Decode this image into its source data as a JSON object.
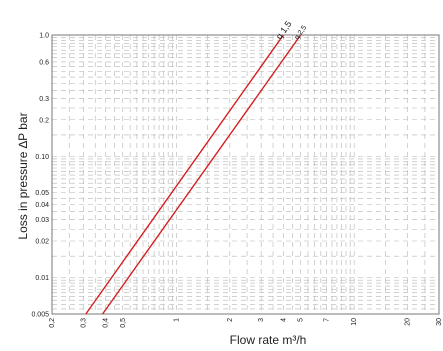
{
  "chart_data": {
    "type": "line",
    "xscale": "log",
    "yscale": "log",
    "xlim": [
      0.2,
      30
    ],
    "ylim": [
      0.005,
      1.0
    ],
    "xticks": [
      {
        "value": 0.2,
        "label": "0,2"
      },
      {
        "value": 0.3,
        "label": "0,3"
      },
      {
        "value": 0.4,
        "label": "0,4"
      },
      {
        "value": 0.5,
        "label": "0,5"
      },
      {
        "value": 1,
        "label": "1"
      },
      {
        "value": 2,
        "label": "2"
      },
      {
        "value": 3,
        "label": "3"
      },
      {
        "value": 4,
        "label": "4"
      },
      {
        "value": 5,
        "label": "5"
      },
      {
        "value": 7,
        "label": "7"
      },
      {
        "value": 10,
        "label": "10"
      },
      {
        "value": 20,
        "label": "20"
      },
      {
        "value": 30,
        "label": "30"
      }
    ],
    "yticks": [
      {
        "value": 0.005,
        "label": "0.005"
      },
      {
        "value": 0.01,
        "label": "0.01"
      },
      {
        "value": 0.02,
        "label": "0.02"
      },
      {
        "value": 0.03,
        "label": "0.03"
      },
      {
        "value": 0.04,
        "label": "0.04"
      },
      {
        "value": 0.05,
        "label": "0.05"
      },
      {
        "value": 0.1,
        "label": "0.10"
      },
      {
        "value": 0.2,
        "label": "0.2"
      },
      {
        "value": 0.3,
        "label": "0.3"
      },
      {
        "value": 0.6,
        "label": "0.6"
      },
      {
        "value": 1.0,
        "label": "1.0"
      }
    ],
    "xlabel": "Flow rate  m³/h",
    "ylabel": "Loss in pressure  ∆P bar",
    "grid": true,
    "line_color": "#d42020",
    "series": [
      {
        "name": "q 1,5",
        "label_style": "large",
        "points": [
          {
            "x": 0.31,
            "y": 0.005
          },
          {
            "x": 4.0,
            "y": 1.0
          }
        ]
      },
      {
        "name": "q 2,5",
        "label_style": "small",
        "points": [
          {
            "x": 0.385,
            "y": 0.005
          },
          {
            "x": 5.0,
            "y": 1.0
          }
        ]
      }
    ]
  }
}
